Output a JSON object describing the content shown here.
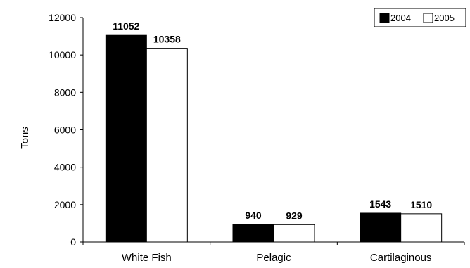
{
  "chart_data": {
    "type": "bar",
    "title": "",
    "xlabel": "",
    "ylabel": "Tons",
    "ylim": [
      0,
      12000
    ],
    "yticks": [
      0,
      2000,
      4000,
      6000,
      8000,
      10000,
      12000
    ],
    "ytick_labels": [
      "0",
      "2000",
      "4000",
      "6000",
      "8000",
      "10000",
      "12000"
    ],
    "categories": [
      "White Fish",
      "Pelagic",
      "Cartilaginous"
    ],
    "series": [
      {
        "name": "2004",
        "values": [
          11052,
          940,
          1543
        ],
        "value_labels": [
          "11052",
          "940",
          "1543"
        ],
        "color": "#000000"
      },
      {
        "name": "2005",
        "values": [
          10358,
          929,
          1510
        ],
        "value_labels": [
          "10358",
          "929",
          "1510"
        ],
        "color": "#ffffff"
      }
    ],
    "grid": false,
    "legend_position": "top-right"
  }
}
